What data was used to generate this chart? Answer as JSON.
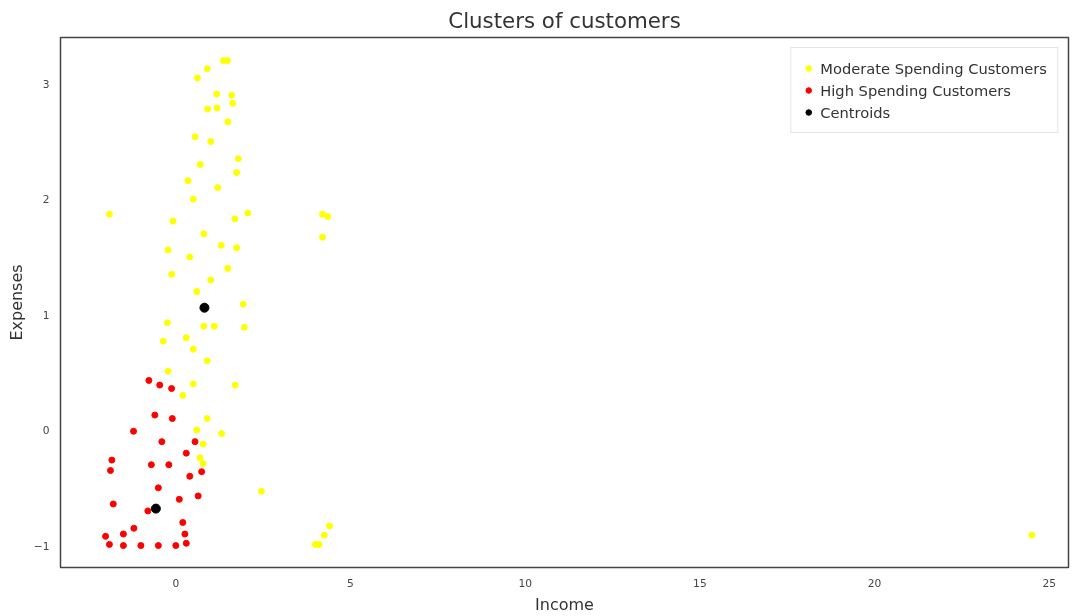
{
  "chart_data": {
    "type": "scatter",
    "title": "Clusters of customers",
    "xlabel": "Income",
    "ylabel": "Expenses",
    "xlim": [
      -3.3,
      25.55
    ],
    "ylim": [
      -1.19,
      3.4
    ],
    "xticks": [
      0,
      5,
      10,
      15,
      20,
      25
    ],
    "yticks": [
      -1,
      0,
      1,
      2,
      3
    ],
    "grid": false,
    "legend": "top right",
    "marker": "circle",
    "series": [
      {
        "name": "Moderate Spending Customers",
        "color": "#ffff00",
        "x": [
          -1.9,
          2.06,
          4.2,
          4.35,
          4.2,
          2.45,
          4.4,
          4.25,
          4.1,
          4.0,
          24.5,
          1.36,
          1.48,
          0.9,
          0.62,
          1.17,
          1.6,
          1.63,
          0.91,
          1.18,
          1.49,
          0.55,
          1.79,
          0.35,
          1.74,
          -0.08,
          1.69,
          -0.22,
          1.74,
          -0.12,
          1.49,
          1.93,
          -0.24,
          1.96,
          -0.36,
          1.7,
          -0.22,
          1.31,
          0.78,
          0.78,
          0.69,
          0.5,
          0.8,
          1.0,
          0.6,
          0.3,
          0.9,
          0.5,
          1.1,
          0.7,
          1.2,
          0.4,
          1.3,
          0.2,
          0.9,
          0.6,
          1.0,
          0.8,
          0.5
        ],
        "values": [
          1.87,
          1.88,
          1.87,
          1.85,
          1.67,
          -0.53,
          -0.83,
          -0.91,
          -0.99,
          -0.99,
          -0.91,
          3.2,
          3.2,
          3.13,
          3.05,
          2.91,
          2.9,
          2.83,
          2.78,
          2.79,
          2.67,
          2.54,
          2.35,
          2.16,
          2.23,
          1.81,
          1.83,
          1.56,
          1.58,
          1.35,
          1.4,
          1.09,
          0.93,
          0.89,
          0.77,
          0.39,
          0.51,
          -0.03,
          -0.12,
          -0.29,
          -0.24,
          2.0,
          1.7,
          1.3,
          1.2,
          0.8,
          0.6,
          0.4,
          0.9,
          2.3,
          2.1,
          1.5,
          1.6,
          0.3,
          0.1,
          0.0,
          2.5,
          0.9,
          0.7
        ]
      },
      {
        "name": "High Spending Customers",
        "color": "#ff0000",
        "x": [
          -0.77,
          -0.46,
          -0.12,
          -1.21,
          -1.83,
          -1.87,
          -1.79,
          -2.01,
          0.26,
          0.64,
          0.74,
          0.55,
          -0.6,
          -1.9,
          -1.5,
          -1.0,
          -0.5,
          0.0,
          0.3,
          -0.5,
          -0.2,
          0.1,
          -0.8,
          -1.2,
          0.3,
          -0.1,
          0.2,
          -0.4,
          -1.5,
          0.4,
          -0.7
        ],
        "values": [
          0.43,
          0.39,
          0.36,
          -0.01,
          -0.26,
          -0.35,
          -0.64,
          -0.92,
          -0.9,
          -0.57,
          -0.36,
          -0.1,
          0.13,
          -0.99,
          -1.0,
          -1.0,
          -1.0,
          -1.0,
          -0.98,
          -0.5,
          -0.3,
          -0.6,
          -0.7,
          -0.85,
          -0.2,
          0.1,
          -0.8,
          -0.1,
          -0.9,
          -0.4,
          -0.3
        ]
      },
      {
        "name": "Centroids",
        "color": "#000000",
        "x": [
          0.82,
          -0.57
        ],
        "values": [
          1.06,
          -0.68
        ]
      }
    ]
  }
}
